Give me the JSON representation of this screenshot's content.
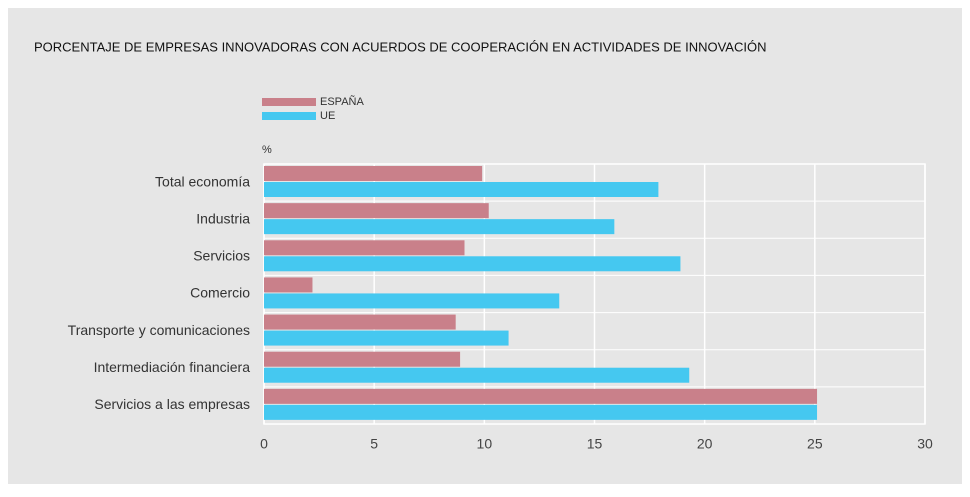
{
  "chart_data": {
    "type": "hbar",
    "title": "PORCENTAJE DE EMPRESAS INNOVADORAS CON ACUERDOS DE COOPERACIÓN EN ACTIVIDADES DE INNOVACIÓN",
    "unit_label": "%",
    "categories": [
      "Total economía",
      "Industria",
      "Servicios",
      "Comercio",
      "Transporte y comunicaciones",
      "Intermediación financiera",
      "Servicios a las empresas"
    ],
    "series": [
      {
        "name": "ESPAÑA",
        "color": "#c9808a",
        "values": [
          9.9,
          10.2,
          9.1,
          2.2,
          8.7,
          8.9,
          25.1
        ]
      },
      {
        "name": "UE",
        "color": "#45c8f0",
        "values": [
          17.9,
          15.9,
          18.9,
          13.4,
          11.1,
          19.3,
          25.1
        ]
      }
    ],
    "xlim": [
      0,
      30
    ],
    "xticks": [
      0,
      5,
      10,
      15,
      20,
      25,
      30
    ],
    "grid": true
  }
}
